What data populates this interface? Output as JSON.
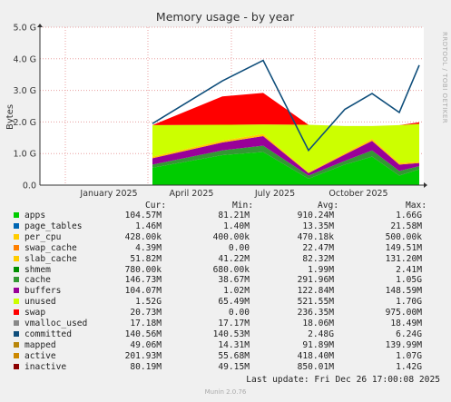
{
  "chart_data": {
    "type": "area",
    "title": "Memory usage - by year",
    "ylabel": "Bytes",
    "ylim": [
      0,
      5
    ],
    "yunit": "G",
    "yticks": [
      "0.0",
      "1.0 G",
      "2.0 G",
      "3.0 G",
      "4.0 G",
      "5.0 G"
    ],
    "xticks": [
      "January 2025",
      "April 2025",
      "July 2025",
      "October 2025"
    ],
    "grid": true,
    "x": [
      "Apr 2025",
      "Jun 2025",
      "Jul 2025",
      "Aug 2025",
      "Sep 2025",
      "Oct 2025",
      "Nov 2025",
      "Dec 2025"
    ],
    "series": [
      {
        "name": "apps",
        "color": "#00cc00",
        "values": [
          0.55,
          0.95,
          1.05,
          0.2,
          0.65,
          0.9,
          0.3,
          0.5
        ]
      },
      {
        "name": "cache",
        "color": "#339933",
        "values": [
          0.1,
          0.15,
          0.2,
          0.1,
          0.12,
          0.2,
          0.15,
          0.1
        ]
      },
      {
        "name": "buffers",
        "color": "#990099",
        "values": [
          0.2,
          0.25,
          0.3,
          0.08,
          0.2,
          0.3,
          0.2,
          0.1
        ]
      },
      {
        "name": "slab_cache",
        "color": "#ffcc00",
        "values": [
          0.05,
          0.06,
          0.07,
          0.03,
          0.05,
          0.07,
          0.05,
          0.04
        ]
      },
      {
        "name": "unused",
        "color": "#ccff00",
        "values": [
          1.0,
          0.5,
          0.3,
          1.5,
          0.85,
          0.4,
          1.2,
          1.2
        ]
      },
      {
        "name": "swap",
        "color": "#ff0000",
        "values": [
          0,
          0.9,
          1.0,
          0,
          0,
          0,
          0,
          0.05
        ]
      },
      {
        "name": "committed",
        "color": "#0f4e7b",
        "values": [
          1.95,
          3.3,
          3.95,
          1.1,
          2.4,
          2.9,
          2.3,
          3.8
        ]
      }
    ]
  },
  "side_text": "RRDTOOL / TOBI OETIKER",
  "columns": {
    "cur": "Cur:",
    "min": "Min:",
    "avg": "Avg:",
    "max": "Max:"
  },
  "legend": [
    {
      "name": "apps",
      "color": "#00cc00",
      "cur": "104.57M",
      "min": "81.21M",
      "avg": "910.24M",
      "max": "1.66G"
    },
    {
      "name": "page_tables",
      "color": "#0066b3",
      "cur": "1.46M",
      "min": "1.40M",
      "avg": "13.35M",
      "max": "21.58M"
    },
    {
      "name": "per_cpu",
      "color": "#ffcc00",
      "cur": "428.00k",
      "min": "400.00k",
      "avg": "470.18k",
      "max": "500.00k"
    },
    {
      "name": "swap_cache",
      "color": "#ff8000",
      "cur": "4.39M",
      "min": "0.00",
      "avg": "22.47M",
      "max": "149.51M"
    },
    {
      "name": "slab_cache",
      "color": "#ffcc00",
      "cur": "51.82M",
      "min": "41.22M",
      "avg": "82.32M",
      "max": "131.20M"
    },
    {
      "name": "shmem",
      "color": "#008f00",
      "cur": "780.00k",
      "min": "680.00k",
      "avg": "1.99M",
      "max": "2.41M"
    },
    {
      "name": "cache",
      "color": "#339933",
      "cur": "146.73M",
      "min": "38.67M",
      "avg": "291.96M",
      "max": "1.05G"
    },
    {
      "name": "buffers",
      "color": "#990099",
      "cur": "104.07M",
      "min": "1.02M",
      "avg": "122.84M",
      "max": "148.59M"
    },
    {
      "name": "unused",
      "color": "#ccff00",
      "cur": "1.52G",
      "min": "65.49M",
      "avg": "521.55M",
      "max": "1.70G"
    },
    {
      "name": "swap",
      "color": "#ff0000",
      "cur": "20.73M",
      "min": "0.00",
      "avg": "236.35M",
      "max": "975.00M"
    },
    {
      "name": "vmalloc_used",
      "color": "#888888",
      "cur": "17.18M",
      "min": "17.17M",
      "avg": "18.06M",
      "max": "18.49M"
    },
    {
      "name": "committed",
      "color": "#0f4e7b",
      "cur": "140.56M",
      "min": "140.53M",
      "avg": "2.48G",
      "max": "6.24G"
    },
    {
      "name": "mapped",
      "color": "#b8860b",
      "cur": "49.06M",
      "min": "14.31M",
      "avg": "91.89M",
      "max": "139.99M"
    },
    {
      "name": "active",
      "color": "#cc8800",
      "cur": "201.93M",
      "min": "55.68M",
      "avg": "418.40M",
      "max": "1.07G"
    },
    {
      "name": "inactive",
      "color": "#8b0000",
      "cur": "80.19M",
      "min": "49.15M",
      "avg": "850.01M",
      "max": "1.42G"
    }
  ],
  "last_update": "Last update: Fri Dec 26 17:00:08 2025",
  "version": "Munin 2.0.76"
}
